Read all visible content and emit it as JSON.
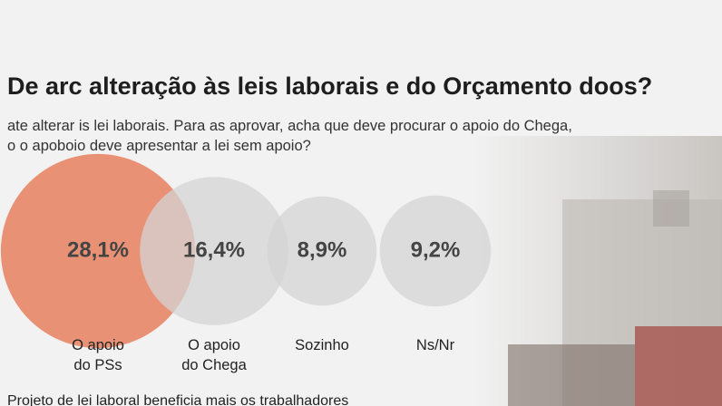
{
  "chart_data": {
    "type": "bubble",
    "title": "De arc alteração às leis laborais e do Orçamento doos?",
    "subtitle": "ate alterar is lei laborais. Para as aprovar, acha que deve procurar o apoio do Chega,\no o apoboio deve apresentar a lei sem apoio?",
    "categories": [
      "O apoio\ndo PSs",
      "O apoio\ndo Chega",
      "Sozinho",
      "Ns/Nr"
    ],
    "values": [
      28.1,
      16.4,
      8.9,
      9.2
    ],
    "value_labels": [
      "28,1%",
      "16,4%",
      "8,9%",
      "9,2%"
    ],
    "colors": [
      "#e8805f",
      "#d4d4d4",
      "#d4d4d4",
      "#d4d4d4"
    ],
    "footnote": "Projeto de lei laboral beneficia mais os trabalhadores"
  }
}
